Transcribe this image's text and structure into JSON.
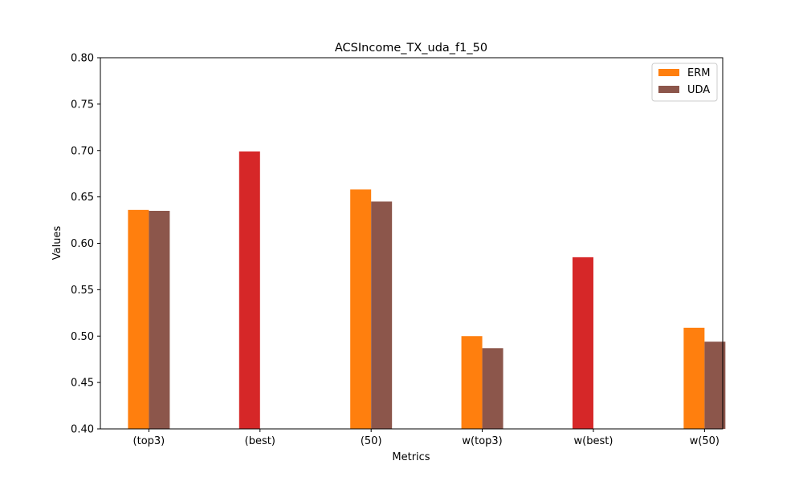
{
  "chart_data": {
    "type": "bar",
    "title": "ACSIncome_TX_uda_f1_50",
    "xlabel": "Metrics",
    "ylabel": "Values",
    "ylim": [
      0.4,
      0.8
    ],
    "yticks": [
      "0.40",
      "0.45",
      "0.50",
      "0.55",
      "0.60",
      "0.65",
      "0.70",
      "0.75",
      "0.80"
    ],
    "categories": [
      "(top3)",
      "(best)",
      "(50)",
      "w(top3)",
      "w(best)",
      "w(50)"
    ],
    "series": [
      {
        "name": "ERM",
        "color": "#ff7f0e",
        "values": [
          0.636,
          null,
          0.658,
          0.5,
          null,
          0.509
        ]
      },
      {
        "name": "UDA",
        "color": "#8c564b",
        "values": [
          0.635,
          null,
          0.645,
          0.487,
          null,
          0.494
        ]
      }
    ],
    "single_bars": {
      "color": "#d62728",
      "values": [
        null,
        0.699,
        null,
        null,
        0.585,
        null
      ]
    },
    "legend": {
      "position": "top-right"
    }
  }
}
